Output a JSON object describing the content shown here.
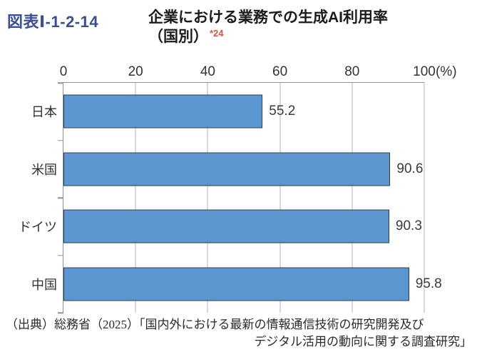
{
  "header": {
    "figure_label": "図表Ⅰ-1-2-14",
    "title_line1": "企業における業務での生成AI利用率",
    "title_line2": "（国別）",
    "footnote_marker": "*24"
  },
  "chart_data": {
    "type": "bar",
    "orientation": "horizontal",
    "title": "企業における業務での生成AI利用率（国別）",
    "categories": [
      "日本",
      "米国",
      "ドイツ",
      "中国"
    ],
    "values": [
      55.2,
      90.6,
      90.3,
      95.8
    ],
    "value_labels": [
      "55.2",
      "90.6",
      "90.3",
      "95.8"
    ],
    "x_ticks": [
      0,
      20,
      40,
      60,
      80,
      100
    ],
    "xlim": [
      0,
      100
    ],
    "unit": "(%)",
    "grid": true,
    "legend": "none",
    "bar_color": "#5b96d1",
    "bar_border_color": "#2e3f54"
  },
  "source": {
    "line1": "（出典）総務省（2025）「国内外における最新の情報通信技術の研究開発及び",
    "line2": "デジタル活用の動向に関する調査研究」"
  },
  "colors": {
    "figure_label": "#3c4d99",
    "footnote": "#d25548"
  }
}
